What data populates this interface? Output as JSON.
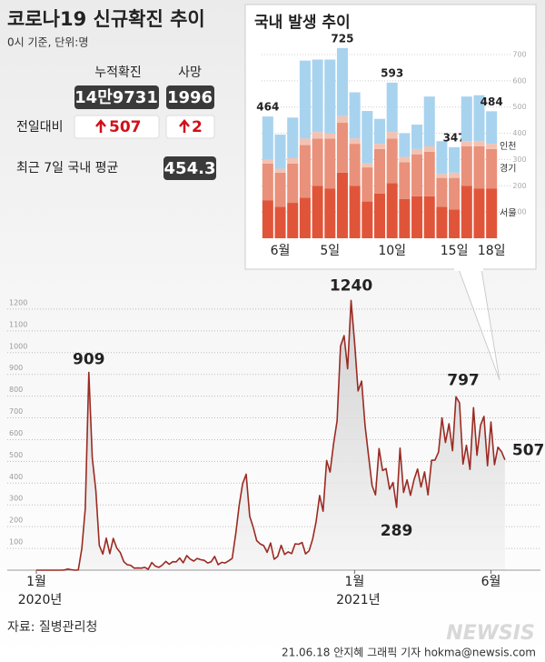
{
  "header": {
    "title": "코로나19 신규확진 추이",
    "subtitle": "0시 기준, 단위:명"
  },
  "stats": {
    "labels": [
      "누적확진",
      "사망"
    ],
    "totals": [
      "14만9731",
      "1996"
    ],
    "change_label": "전일대비",
    "changes": [
      507,
      2
    ],
    "avg_label": "최근 7일 국내 평균",
    "avg": 454.3
  },
  "chart_data": [
    {
      "type": "stacked_bar",
      "title": "국내 발생 추이",
      "categories": [
        null,
        "6월",
        null,
        null,
        null,
        "5일",
        null,
        null,
        null,
        null,
        "10일",
        null,
        null,
        null,
        null,
        "15일",
        null,
        null,
        "18일"
      ],
      "series": [
        {
          "name": "서울",
          "color": "#e0553a",
          "values": [
            145,
            120,
            135,
            155,
            200,
            190,
            250,
            200,
            140,
            170,
            210,
            150,
            160,
            160,
            120,
            110,
            200,
            190,
            190
          ]
        },
        {
          "name": "경기",
          "color": "#e9917b",
          "values": [
            140,
            130,
            150,
            200,
            180,
            190,
            190,
            160,
            130,
            170,
            170,
            140,
            160,
            170,
            110,
            120,
            150,
            160,
            150
          ]
        },
        {
          "name": "인천",
          "color": "#f3c2b2",
          "values": [
            15,
            15,
            20,
            25,
            25,
            20,
            25,
            20,
            15,
            20,
            25,
            20,
            20,
            20,
            15,
            20,
            20,
            20,
            20
          ]
        },
        {
          "color": "#a8d3ef",
          "values": [
            164,
            130,
            155,
            297,
            276,
            281,
            260,
            176,
            200,
            95,
            188,
            90,
            93,
            190,
            125,
            97,
            170,
            175,
            124
          ]
        }
      ],
      "totals": [
        464,
        null,
        null,
        null,
        null,
        null,
        725,
        null,
        null,
        null,
        593,
        null,
        null,
        null,
        null,
        347,
        null,
        null,
        484
      ],
      "ylim": [
        0,
        700
      ],
      "yticks": [
        100,
        200,
        300,
        400,
        500,
        600,
        700
      ],
      "grid": true
    },
    {
      "type": "line",
      "color": "#9b2a22",
      "categories": [
        "1월",
        null,
        null,
        null,
        null,
        null,
        null,
        null,
        null,
        null,
        null,
        null,
        null,
        null,
        null,
        null,
        null,
        null,
        null,
        null,
        null,
        null,
        null,
        null,
        null,
        null,
        null,
        null,
        null,
        null,
        null,
        null,
        null,
        null,
        null,
        null,
        null,
        null,
        null,
        null,
        null,
        null,
        null,
        null,
        null,
        null,
        null,
        null,
        null,
        null,
        null,
        null,
        null,
        null,
        null,
        null,
        null,
        null,
        null,
        null,
        null,
        null,
        null,
        null,
        null,
        null,
        null,
        null,
        null,
        null,
        null,
        null,
        null,
        null,
        null,
        null,
        null,
        null,
        null,
        null,
        null,
        null,
        null,
        null,
        null,
        null,
        null,
        null,
        null,
        null,
        null,
        "1월",
        null,
        null,
        null,
        null,
        null,
        null,
        null,
        null,
        null,
        null,
        null,
        null,
        null,
        null,
        null,
        null,
        null,
        null,
        null,
        null,
        null,
        null,
        null,
        null,
        null,
        null,
        null,
        null,
        null,
        null,
        null,
        null,
        null,
        null,
        null,
        null,
        null,
        null,
        "6월",
        null,
        null,
        null,
        null
      ],
      "x_year_labels": [
        "2020년",
        "2021년"
      ],
      "values": [
        0,
        0,
        0,
        0,
        0,
        0,
        0,
        0,
        1,
        5,
        2,
        0,
        1,
        100,
        284,
        909,
        516,
        367,
        114,
        74,
        147,
        76,
        146,
        101,
        81,
        39,
        25,
        22,
        9,
        10,
        9,
        13,
        4,
        35,
        19,
        13,
        23,
        40,
        27,
        39,
        38,
        56,
        34,
        67,
        51,
        42,
        54,
        48,
        45,
        33,
        39,
        63,
        25,
        36,
        33,
        43,
        54,
        166,
        297,
        397,
        441,
        248,
        198,
        136,
        121,
        113,
        82,
        125,
        50,
        63,
        114,
        72,
        84,
        76,
        121,
        119,
        127,
        75,
        89,
        143,
        223,
        343,
        271,
        504,
        451,
        583,
        686,
        1030,
        1078,
        926,
        1240,
        1046,
        824,
        869,
        665,
        524,
        389,
        346,
        559,
        458,
        467,
        372,
        403,
        289,
        561,
        357,
        415,
        344,
        416,
        465,
        382,
        452,
        346,
        505,
        506,
        543,
        700,
        587,
        673,
        549,
        797,
        769,
        488,
        574,
        463,
        747,
        528,
        666,
        707,
        480,
        681,
        485,
        565,
        545,
        507
      ],
      "ylim": [
        0,
        1300
      ],
      "yticks": [
        100,
        200,
        300,
        400,
        500,
        600,
        700,
        800,
        900,
        1000,
        1100,
        1200
      ],
      "grid": true
    }
  ],
  "source": "자료: 질병관리청",
  "credit": "21.06.18 안지혜 그래픽 기자 hokma@newsis.com",
  "watermark": "NEWSIS"
}
